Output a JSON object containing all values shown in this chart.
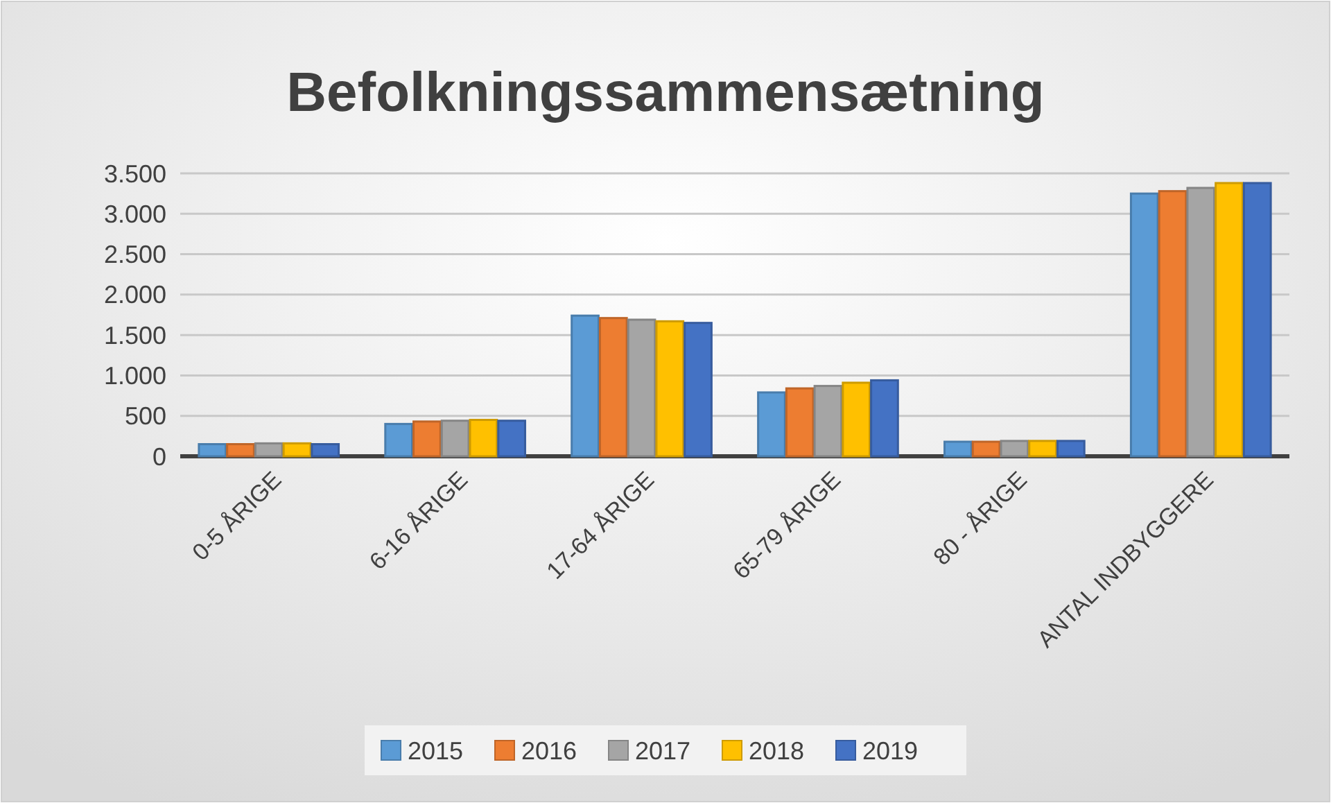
{
  "chart_data": {
    "type": "bar",
    "title": "Befolkningssammensætning",
    "categories": [
      "0-5 ÅRIGE",
      "6-16 ÅRIGE",
      "17-64 ÅRIGE",
      "65-79 ÅRIGE",
      "80 - ÅRIGE",
      "ANTAL INDBYGGERE"
    ],
    "series": [
      {
        "name": "2015",
        "color": "#5b9bd5",
        "values": [
          150,
          400,
          1740,
          790,
          180,
          3250
        ]
      },
      {
        "name": "2016",
        "color": "#ed7d31",
        "values": [
          150,
          430,
          1710,
          840,
          180,
          3280
        ]
      },
      {
        "name": "2017",
        "color": "#a5a5a5",
        "values": [
          160,
          440,
          1690,
          870,
          190,
          3320
        ]
      },
      {
        "name": "2018",
        "color": "#ffc000",
        "values": [
          160,
          450,
          1670,
          910,
          190,
          3380
        ]
      },
      {
        "name": "2019",
        "color": "#4472c4",
        "values": [
          150,
          440,
          1650,
          940,
          190,
          3380
        ]
      }
    ],
    "ylim": [
      0,
      3500
    ],
    "yticks": [
      0,
      {
        "value": 500,
        "label": "500"
      },
      {
        "value": 1000,
        "label": "1.000"
      },
      {
        "value": 1500,
        "label": "1.500"
      },
      {
        "value": 2000,
        "label": "2.000"
      },
      {
        "value": 2500,
        "label": "2.500"
      },
      {
        "value": 3000,
        "label": "3.000"
      },
      {
        "value": 3500,
        "label": "3.500"
      }
    ],
    "grid": "y",
    "legend": "bottom"
  }
}
